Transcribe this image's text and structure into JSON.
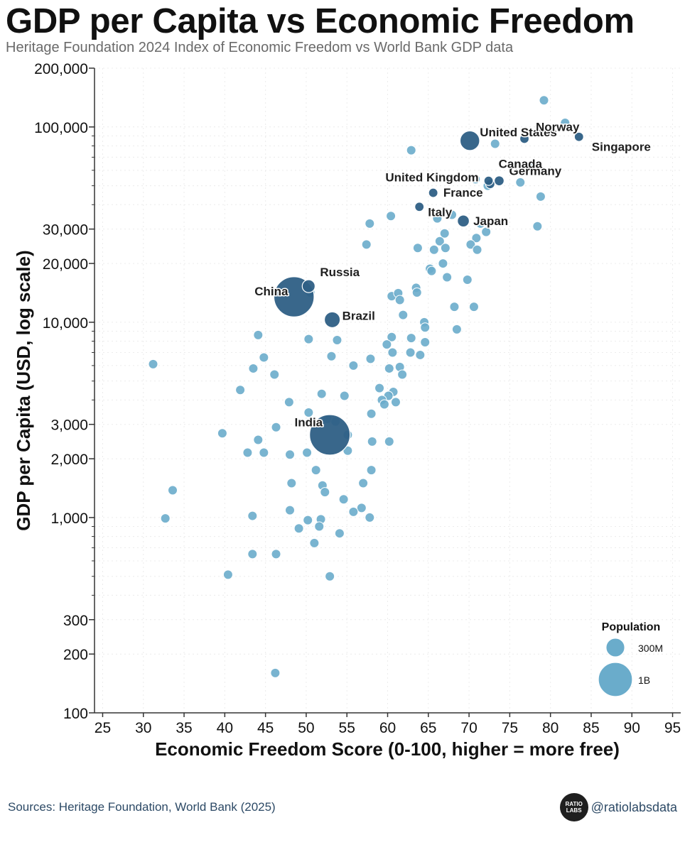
{
  "header": {
    "title": "GDP per Capita vs Economic Freedom",
    "subtitle": "Heritage Foundation 2024 Index of Economic Freedom vs World Bank GDP data"
  },
  "footer": {
    "sources": "Sources: Heritage Foundation, World Bank (2025)",
    "handle": "@ratiolabsdata",
    "logo_text": "RATIO LABS"
  },
  "colors": {
    "small_country": "#6aaccb",
    "large_country": "#2e5f85",
    "axis": "#333333"
  },
  "chart_data": {
    "type": "scatter",
    "title": "GDP per Capita vs Economic Freedom",
    "xlabel": "Economic Freedom Score (0-100, higher = more free)",
    "ylabel": "GDP per Capita (USD, log scale)",
    "xlim": [
      24,
      96
    ],
    "ylim": [
      100,
      200000
    ],
    "yscale": "log",
    "x_ticks": [
      25,
      30,
      35,
      40,
      45,
      50,
      55,
      60,
      65,
      70,
      75,
      80,
      85,
      90,
      95
    ],
    "x_tick_labels": [
      "25",
      "30",
      "35",
      "40",
      "45",
      "50",
      "55",
      "60",
      "65",
      "70",
      "75",
      "80",
      "85",
      "90",
      "95"
    ],
    "y_ticks": [
      100,
      200,
      300,
      1000,
      2000,
      3000,
      10000,
      20000,
      30000,
      100000,
      200000
    ],
    "y_tick_labels": [
      "100",
      "200",
      "300",
      "1,000",
      "2,000",
      "3,000",
      "10,000",
      "20,000",
      "30,000",
      "100,000",
      "200,000"
    ],
    "legend": {
      "title": "Population",
      "position": "bottom-right",
      "entries": [
        {
          "label": "300M",
          "population_m": 300
        },
        {
          "label": "1B",
          "population_m": 1000
        }
      ]
    },
    "labeled_points": [
      {
        "name": "China",
        "x": 48.5,
        "y": 13500,
        "pop_m": 1410
      },
      {
        "name": "India",
        "x": 52.9,
        "y": 2650,
        "pop_m": 1430
      },
      {
        "name": "United States",
        "x": 70.1,
        "y": 85000,
        "pop_m": 335
      },
      {
        "name": "Brazil",
        "x": 53.2,
        "y": 10300,
        "pop_m": 216
      },
      {
        "name": "Russia",
        "x": 50.3,
        "y": 15300,
        "pop_m": 144
      },
      {
        "name": "Japan",
        "x": 69.3,
        "y": 33000,
        "pop_m": 124
      },
      {
        "name": "Germany",
        "x": 73.7,
        "y": 53000,
        "pop_m": 84
      },
      {
        "name": "United Kingdom",
        "x": 65.6,
        "y": 46000,
        "pop_m": 68
      },
      {
        "name": "France",
        "x": 72.6,
        "y": 51000,
        "pop_m": 68
      },
      {
        "name": "Italy",
        "x": 63.9,
        "y": 39000,
        "pop_m": 59
      },
      {
        "name": "Canada",
        "x": 72.4,
        "y": 53000,
        "pop_m": 40
      },
      {
        "name": "Norway",
        "x": 76.8,
        "y": 87000,
        "pop_m": 5.5
      },
      {
        "name": "Singapore",
        "x": 83.5,
        "y": 89000,
        "pop_m": 5.9
      }
    ],
    "points": [
      [
        79.2,
        137000,
        6
      ],
      [
        81.8,
        105000,
        6
      ],
      [
        73.2,
        82000,
        8
      ],
      [
        62.9,
        76000,
        10
      ],
      [
        78.0,
        63000,
        6
      ],
      [
        70.8,
        54000,
        10
      ],
      [
        72.3,
        50000,
        8
      ],
      [
        76.3,
        52000,
        10
      ],
      [
        78.8,
        44000,
        12
      ],
      [
        67.9,
        35500,
        10
      ],
      [
        60.4,
        35000,
        18
      ],
      [
        57.8,
        32000,
        6
      ],
      [
        66.1,
        34000,
        10
      ],
      [
        71.4,
        32000,
        10
      ],
      [
        78.4,
        31000,
        10
      ],
      [
        72.1,
        29000,
        10
      ],
      [
        67.0,
        28500,
        10
      ],
      [
        70.9,
        27000,
        6
      ],
      [
        66.4,
        26000,
        10
      ],
      [
        70.2,
        25000,
        18
      ],
      [
        57.4,
        25000,
        10
      ],
      [
        63.7,
        24000,
        6
      ],
      [
        65.7,
        23500,
        10
      ],
      [
        67.1,
        24000,
        10
      ],
      [
        71.0,
        23500,
        10
      ],
      [
        66.8,
        20000,
        10
      ],
      [
        65.2,
        18800,
        10
      ],
      [
        65.4,
        18300,
        10
      ],
      [
        67.3,
        17000,
        10
      ],
      [
        69.8,
        16500,
        10
      ],
      [
        60.5,
        13600,
        10
      ],
      [
        61.3,
        14100,
        6
      ],
      [
        61.5,
        13000,
        10
      ],
      [
        63.5,
        15000,
        18
      ],
      [
        63.6,
        14200,
        20
      ],
      [
        50.5,
        14200,
        10
      ],
      [
        68.2,
        12000,
        16
      ],
      [
        70.6,
        12000,
        10
      ],
      [
        61.9,
        10900,
        12
      ],
      [
        64.5,
        10000,
        10
      ],
      [
        64.6,
        9400,
        10
      ],
      [
        68.5,
        9200,
        10
      ],
      [
        44.1,
        8600,
        10
      ],
      [
        50.3,
        8200,
        10
      ],
      [
        53.8,
        8100,
        10
      ],
      [
        60.5,
        8400,
        10
      ],
      [
        62.9,
        8300,
        18
      ],
      [
        64.6,
        7900,
        10
      ],
      [
        59.9,
        7700,
        18
      ],
      [
        60.6,
        7000,
        12
      ],
      [
        62.8,
        7000,
        18
      ],
      [
        64.0,
        6800,
        10
      ],
      [
        53.1,
        6700,
        12
      ],
      [
        44.8,
        6600,
        10
      ],
      [
        57.9,
        6500,
        10
      ],
      [
        31.2,
        6100,
        10
      ],
      [
        55.8,
        6000,
        18
      ],
      [
        43.5,
        5800,
        18
      ],
      [
        60.2,
        5800,
        10
      ],
      [
        61.5,
        5900,
        12
      ],
      [
        46.1,
        5400,
        18
      ],
      [
        61.8,
        5400,
        10
      ],
      [
        41.9,
        4500,
        20
      ],
      [
        59.0,
        4600,
        60
      ],
      [
        60.7,
        4400,
        10
      ],
      [
        51.9,
        4300,
        10
      ],
      [
        54.7,
        4200,
        10
      ],
      [
        60.1,
        4200,
        15
      ],
      [
        59.3,
        4000,
        12
      ],
      [
        47.9,
        3900,
        10
      ],
      [
        61.0,
        3900,
        40
      ],
      [
        59.6,
        3800,
        12
      ],
      [
        50.3,
        3450,
        10
      ],
      [
        58.0,
        3400,
        12
      ],
      [
        52.6,
        3200,
        30
      ],
      [
        53.6,
        3100,
        10
      ],
      [
        46.3,
        2900,
        10
      ],
      [
        39.7,
        2700,
        10
      ],
      [
        55.1,
        2650,
        12
      ],
      [
        44.1,
        2500,
        10
      ],
      [
        58.1,
        2450,
        18
      ],
      [
        60.2,
        2450,
        10
      ],
      [
        42.8,
        2150,
        10
      ],
      [
        44.8,
        2150,
        18
      ],
      [
        48.0,
        2100,
        10
      ],
      [
        50.1,
        2150,
        10
      ],
      [
        55.1,
        2200,
        18
      ],
      [
        51.2,
        1750,
        12
      ],
      [
        58.0,
        1750,
        10
      ],
      [
        48.2,
        1500,
        55
      ],
      [
        52.0,
        1460,
        10
      ],
      [
        57.0,
        1500,
        12
      ],
      [
        33.6,
        1380,
        12
      ],
      [
        52.3,
        1350,
        10
      ],
      [
        54.6,
        1240,
        10
      ],
      [
        56.8,
        1120,
        18
      ],
      [
        48.0,
        1090,
        10
      ],
      [
        55.8,
        1070,
        20
      ],
      [
        32.7,
        990,
        12
      ],
      [
        43.4,
        1020,
        10
      ],
      [
        50.2,
        970,
        10
      ],
      [
        51.8,
        980,
        10
      ],
      [
        57.8,
        1000,
        10
      ],
      [
        49.1,
        880,
        10
      ],
      [
        51.6,
        900,
        10
      ],
      [
        54.1,
        830,
        40
      ],
      [
        51.0,
        740,
        10
      ],
      [
        43.4,
        650,
        20
      ],
      [
        46.3,
        650,
        12
      ],
      [
        40.4,
        510,
        10
      ],
      [
        52.9,
        500,
        10
      ],
      [
        46.2,
        160,
        10
      ]
    ]
  }
}
